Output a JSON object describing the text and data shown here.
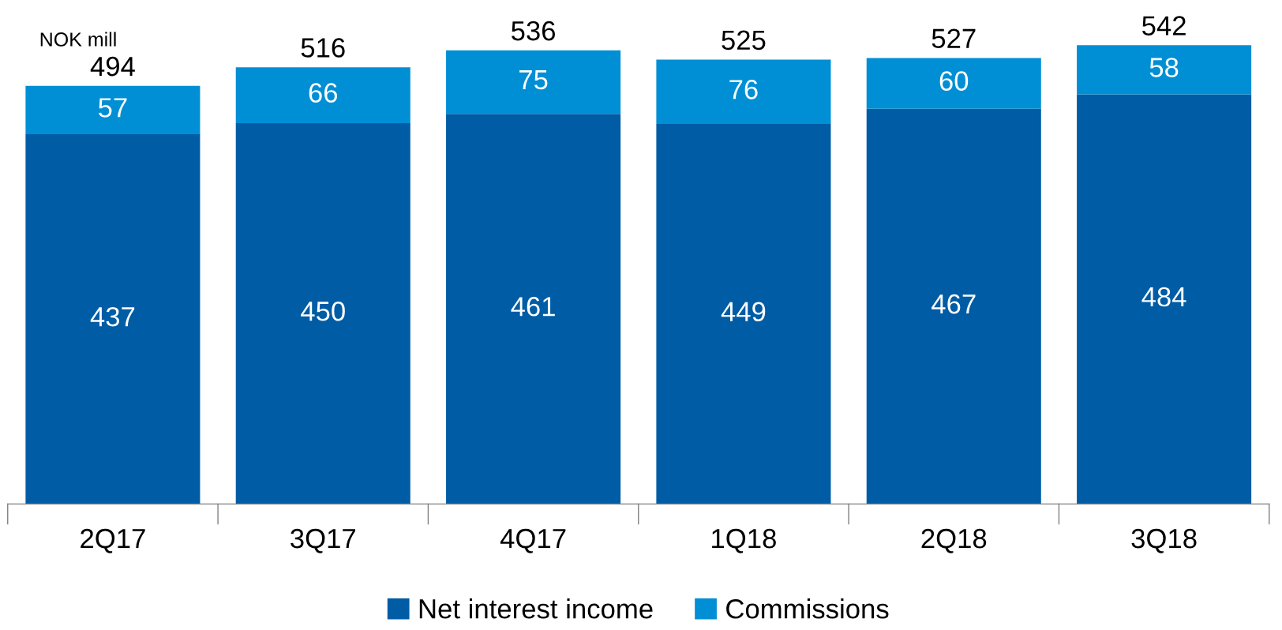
{
  "chart_data": {
    "type": "bar",
    "stacked": true,
    "ylabel": "NOK mill",
    "categories": [
      "2Q17",
      "3Q17",
      "4Q17",
      "1Q18",
      "2Q18",
      "3Q18"
    ],
    "series": [
      {
        "name": "Net interest income",
        "color": "#005ca5",
        "values": [
          437,
          450,
          461,
          449,
          467,
          484
        ]
      },
      {
        "name": "Commissions",
        "color": "#008fd5",
        "values": [
          57,
          66,
          75,
          76,
          60,
          58
        ]
      }
    ],
    "data_labels": true,
    "totals": [
      "494",
      "516",
      "536",
      "525",
      "527",
      "542"
    ],
    "legend": "bottom",
    "grid": false
  }
}
